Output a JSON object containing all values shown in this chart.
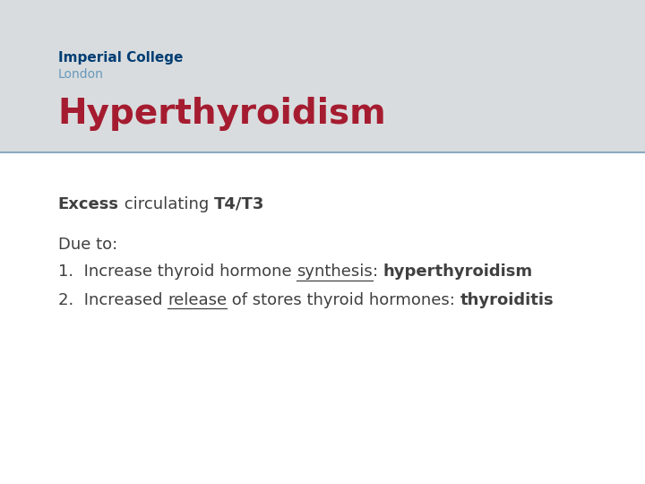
{
  "title": "Hyperthyroidism",
  "title_color": "#A51C30",
  "title_fontsize": 28,
  "title_font": "DejaVu Sans",
  "header_bg_color": "#D9DCDE",
  "logo_line1": "Imperial College",
  "logo_line2": "London",
  "logo_color1": "#003E74",
  "logo_color2": "#6699BB",
  "body_bg_color": "#FFFFFF",
  "divider_color": "#8AAABF",
  "line1_bold": "Excess",
  "line1_normal": " circulating ",
  "line1_bold2": "T4/T3",
  "due_to": "Due to:",
  "item1_normal": "1.  Increase thyroid hormone ",
  "item1_underline": "synthesis",
  "item1_colon": ": ",
  "item1_bold": "hyperthyroidism",
  "item2_normal": "2.  Increased ",
  "item2_underline": "release",
  "item2_after": " of stores thyroid hormones: ",
  "item2_bold": "thyroiditis",
  "text_color": "#404040",
  "fontsize_body": 13
}
